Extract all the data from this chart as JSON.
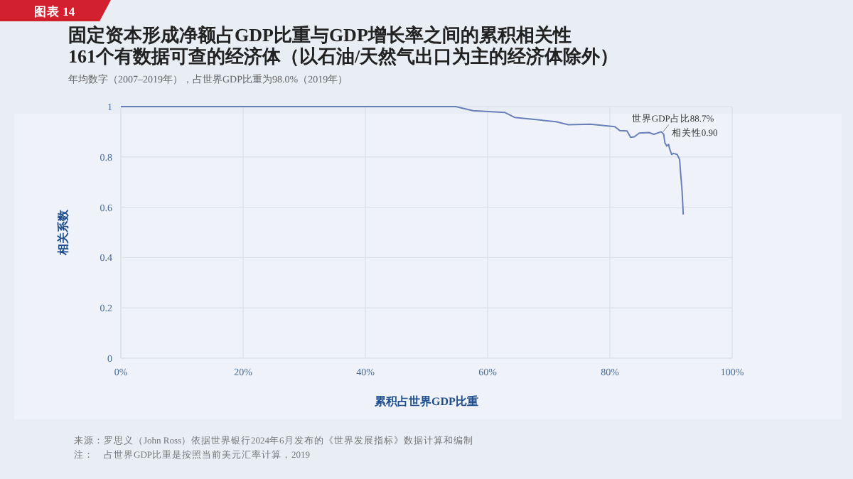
{
  "chart_data": {
    "type": "line",
    "title": "固定资本形成净额占GDP比重与GDP增长率之间的累积相关性\n161个有数据可查的经济体（以石油/天然气出口为主的经济体除外）",
    "subtitle": "年均数字（2007–2019年），占世界GDP比重为98.0%（2019年）",
    "xlabel": "累积占世界GDP比重",
    "ylabel": "相关系数",
    "x": [
      0,
      54.8,
      57.6,
      62.8,
      64.4,
      71.2,
      73.2,
      76.8,
      80.8,
      81.6,
      82.8,
      83.4,
      84.0,
      84.8,
      86.4,
      87.2,
      88.4,
      88.8,
      89.0,
      89.3,
      89.6,
      89.8,
      90.1,
      90.4,
      91.0,
      91.4,
      91.6,
      91.8,
      92.0
    ],
    "series": [
      {
        "color": "#6a7fb8",
        "values": [
          1,
          1,
          0.984,
          0.977,
          0.957,
          0.94,
          0.928,
          0.93,
          0.92,
          0.905,
          0.903,
          0.878,
          0.88,
          0.895,
          0.897,
          0.89,
          0.9,
          0.89,
          0.856,
          0.843,
          0.85,
          0.83,
          0.81,
          0.814,
          0.81,
          0.79,
          0.726,
          0.668,
          0.571
        ]
      }
    ],
    "xlim": [
      0,
      100
    ],
    "ylim": [
      0,
      1
    ],
    "xticks": [
      {
        "value": 0,
        "label": "0%"
      },
      {
        "value": 20,
        "label": "20%"
      },
      {
        "value": 40,
        "label": "40%"
      },
      {
        "value": 60,
        "label": "60%"
      },
      {
        "value": 80,
        "label": "80%"
      },
      {
        "value": 100,
        "label": "100%"
      }
    ],
    "yticks": [
      0,
      0.2,
      0.4,
      0.6,
      0.8,
      1
    ],
    "grid": true,
    "marker": "none",
    "line_style": "solid",
    "annotations": [
      {
        "text": "世界GDP占比88.7%\n相关性0.90",
        "x": 88.7,
        "y": 0.9
      },
      "来源：罗思义（John Ross）依据世界银行2024年6月发布的《世界发展指标》数据计算和编制",
      "注：　占世界GDP比重是按照当前美元汇率计算，2019",
      "图表 14"
    ]
  }
}
